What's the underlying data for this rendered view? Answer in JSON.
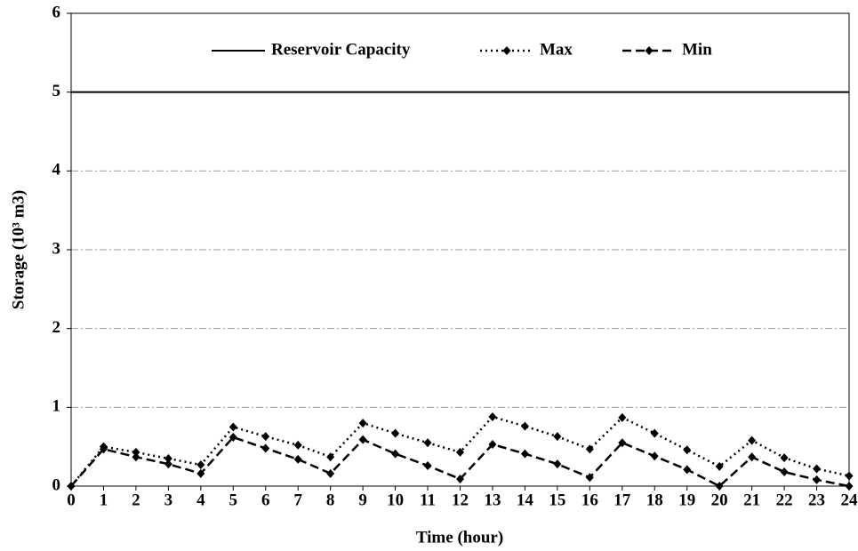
{
  "chart_data": {
    "type": "line",
    "x_label": "Time (hour)",
    "y_label": "Storage (10³ m3)",
    "x": [
      0,
      1,
      2,
      3,
      4,
      5,
      6,
      7,
      8,
      9,
      10,
      11,
      12,
      13,
      14,
      15,
      16,
      17,
      18,
      19,
      20,
      21,
      22,
      23,
      24
    ],
    "xlim": [
      0,
      24
    ],
    "xticks": [
      0,
      1,
      2,
      3,
      4,
      5,
      6,
      7,
      8,
      9,
      10,
      11,
      12,
      13,
      14,
      15,
      16,
      17,
      18,
      19,
      20,
      21,
      22,
      23,
      24
    ],
    "ylim": [
      0,
      6
    ],
    "yticks": [
      0,
      1,
      2,
      3,
      4,
      5,
      6
    ],
    "grid": true,
    "legend": "top",
    "series": [
      {
        "name": "Reservoir Capacity",
        "color": "#000000",
        "line_style": "solid",
        "markers": false,
        "values": [
          5,
          5,
          5,
          5,
          5,
          5,
          5,
          5,
          5,
          5,
          5,
          5,
          5,
          5,
          5,
          5,
          5,
          5,
          5,
          5,
          5,
          5,
          5,
          5,
          5
        ]
      },
      {
        "name": "Max",
        "color": "#000000",
        "line_style": "dotted",
        "markers": true,
        "values": [
          0,
          0.5,
          0.43,
          0.35,
          0.27,
          0.75,
          0.63,
          0.52,
          0.37,
          0.8,
          0.67,
          0.55,
          0.43,
          0.88,
          0.76,
          0.63,
          0.47,
          0.87,
          0.67,
          0.46,
          0.25,
          0.58,
          0.36,
          0.22,
          0.13
        ]
      },
      {
        "name": "Min",
        "color": "#000000",
        "line_style": "dashed",
        "markers": true,
        "values": [
          0,
          0.47,
          0.37,
          0.28,
          0.16,
          0.62,
          0.48,
          0.34,
          0.16,
          0.59,
          0.41,
          0.26,
          0.09,
          0.53,
          0.41,
          0.28,
          0.11,
          0.55,
          0.38,
          0.21,
          0,
          0.37,
          0.18,
          0.08,
          0
        ]
      }
    ]
  }
}
